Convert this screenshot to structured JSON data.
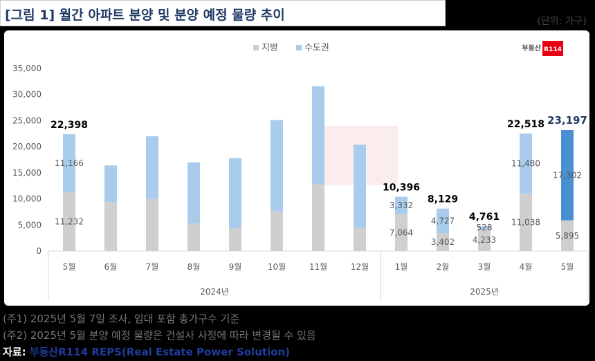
{
  "title": "[그림 1] 월간 아파트 분양 및 분양 예정 물량 추이",
  "unit": "(단위: 가구)",
  "logo": {
    "text_prefix": "부동산",
    "text_brand": "R114"
  },
  "notes": [
    "(주1) 2025년 5월 7일 조사, 임대 포함 총가구수 기준",
    "(주2) 2025년 5월 분양 예정 물량은 건설사 사정에 따라 변경될 수 있음"
  ],
  "source": {
    "label": "자료: ",
    "value": "부동산R114 REPS(Real Estate Power Solution)"
  },
  "colors": {
    "local": "#d0cece",
    "capital": "#a9cbec",
    "capital_highlight": "#4a8fd1",
    "total_highlight": "#1f3864"
  },
  "chart_data": {
    "type": "bar",
    "stacked": true,
    "categories": [
      "5월",
      "6월",
      "7월",
      "8월",
      "9월",
      "10월",
      "11월",
      "12월",
      "1월",
      "2월",
      "3월",
      "4월",
      "5월"
    ],
    "groups": [
      {
        "label": "2024년",
        "start": 0,
        "end": 7
      },
      {
        "label": "2025년",
        "start": 8,
        "end": 12
      }
    ],
    "series": [
      {
        "name": "지방",
        "values": [
          11232,
          9400,
          10000,
          5300,
          4400,
          7600,
          12800,
          4500,
          7064,
          3402,
          4233,
          11038,
          5895
        ]
      },
      {
        "name": "수도권",
        "values": [
          11166,
          7000,
          12000,
          11700,
          13400,
          17500,
          18800,
          15900,
          3332,
          4727,
          528,
          11480,
          17302
        ]
      }
    ],
    "segment_labels": {
      "지방": [
        "11,232",
        null,
        null,
        null,
        null,
        null,
        null,
        null,
        "7,064",
        "3,402",
        "4,233",
        "11,038",
        "5,895"
      ],
      "수도권": [
        "11,166",
        null,
        null,
        null,
        null,
        null,
        null,
        null,
        "3,332",
        "4,727",
        "528",
        "11,480",
        "17,302"
      ]
    },
    "total_labels": [
      "22,398",
      null,
      null,
      null,
      null,
      null,
      null,
      null,
      "10,396",
      "8,129",
      "4,761",
      "22,518",
      "23,197"
    ],
    "highlight_index": 12,
    "y_ticks": [
      "0",
      "5,000",
      "10,000",
      "15,000",
      "20,000",
      "25,000",
      "30,000",
      "35,000"
    ],
    "ylim": [
      0,
      35000
    ],
    "legend": [
      "지방",
      "수도권"
    ],
    "legend_position": "top-center"
  }
}
